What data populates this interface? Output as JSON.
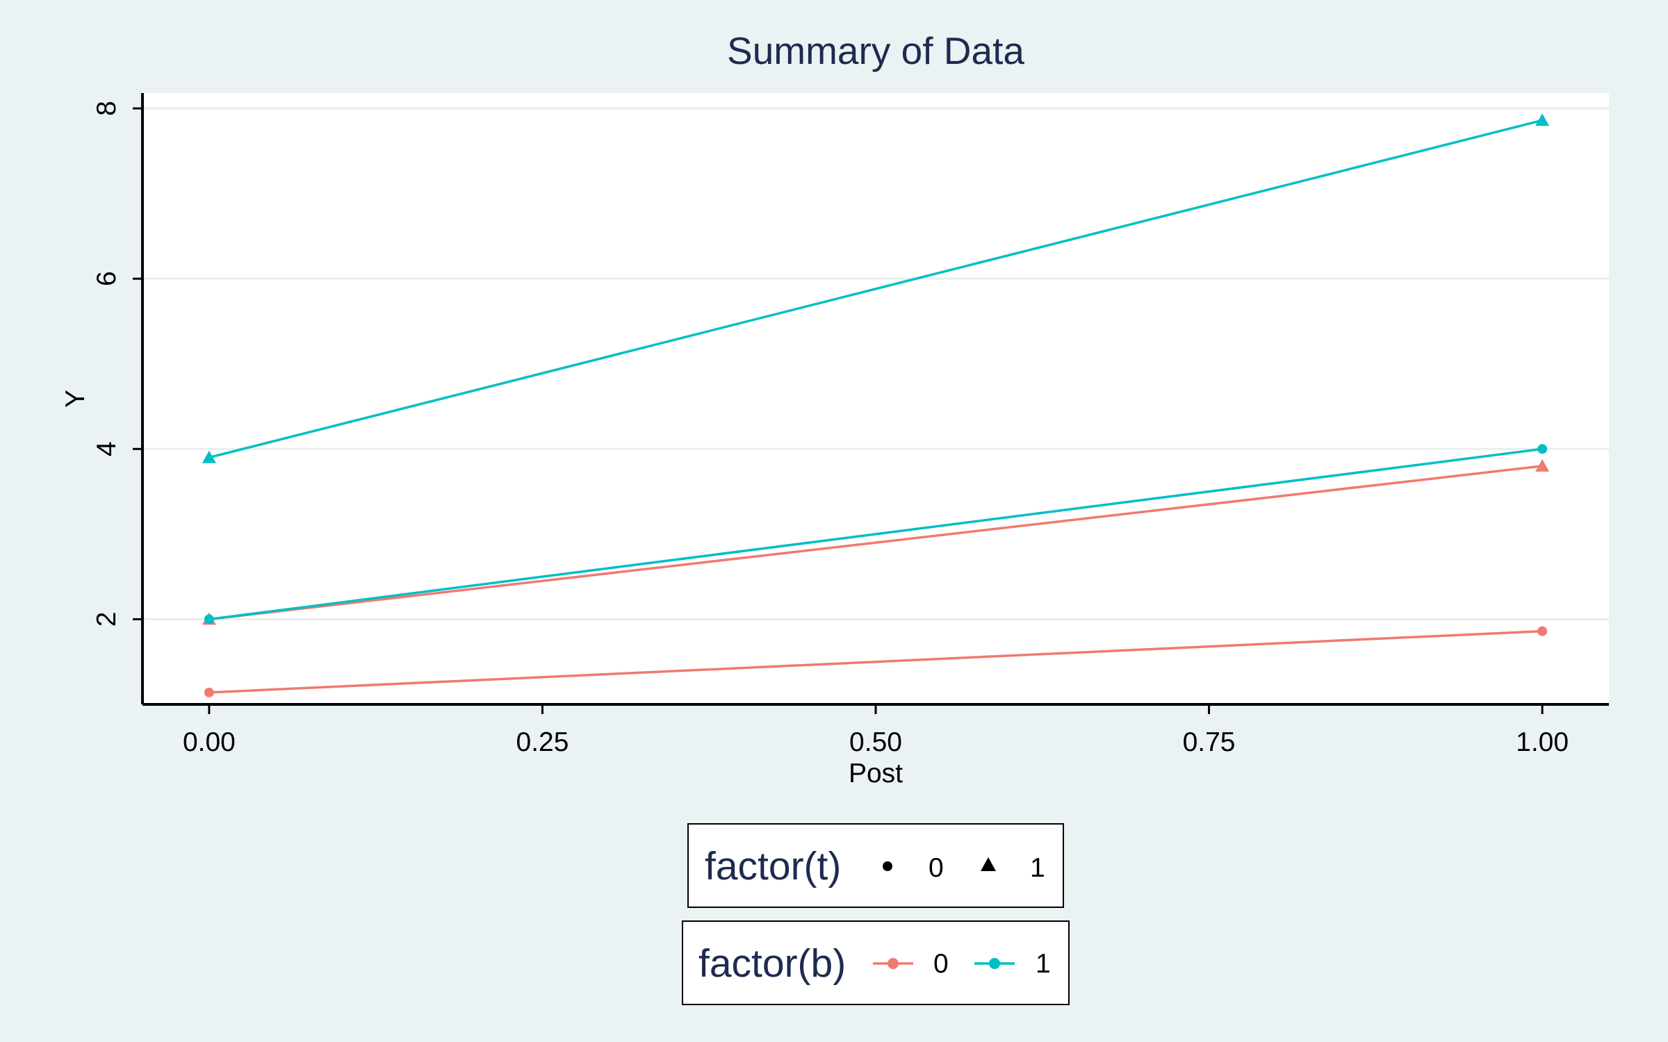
{
  "chart_data": {
    "type": "line",
    "title": "Summary of Data",
    "xlabel": "Post",
    "ylabel": "Y",
    "xlim": [
      -0.05,
      1.05
    ],
    "ylim": [
      1.0,
      8.18
    ],
    "xticks": [
      0.0,
      0.25,
      0.5,
      0.75,
      1.0
    ],
    "xtick_labels": [
      "0.00",
      "0.25",
      "0.50",
      "0.75",
      "1.00"
    ],
    "yticks": [
      2,
      4,
      6,
      8
    ],
    "ytick_labels": [
      "2",
      "4",
      "6",
      "8"
    ],
    "grid": "horizontal",
    "series": [
      {
        "b": "0",
        "t": "0",
        "x": [
          0,
          1
        ],
        "y": [
          1.14,
          1.86
        ]
      },
      {
        "b": "0",
        "t": "1",
        "x": [
          0,
          1
        ],
        "y": [
          2.0,
          3.8
        ]
      },
      {
        "b": "1",
        "t": "0",
        "x": [
          0,
          1
        ],
        "y": [
          2.0,
          4.0
        ]
      },
      {
        "b": "1",
        "t": "1",
        "x": [
          0,
          1
        ],
        "y": [
          3.9,
          7.86
        ]
      }
    ],
    "legends": [
      {
        "title": "factor(t)",
        "kind": "shape",
        "items": [
          {
            "label": "0",
            "shape": "circle"
          },
          {
            "label": "1",
            "shape": "triangle"
          }
        ]
      },
      {
        "title": "factor(b)",
        "kind": "color",
        "items": [
          {
            "label": "0",
            "color": "#f07a6f"
          },
          {
            "label": "1",
            "color": "#00bfc4"
          }
        ]
      }
    ],
    "legend_position": "bottom",
    "colors": {
      "b0": "#f07a6f",
      "b1": "#00bfc4",
      "background": "#eaf2f3",
      "panel": "#ffffff",
      "gridline": "#e6efef",
      "title": "#1e2b4f"
    }
  }
}
